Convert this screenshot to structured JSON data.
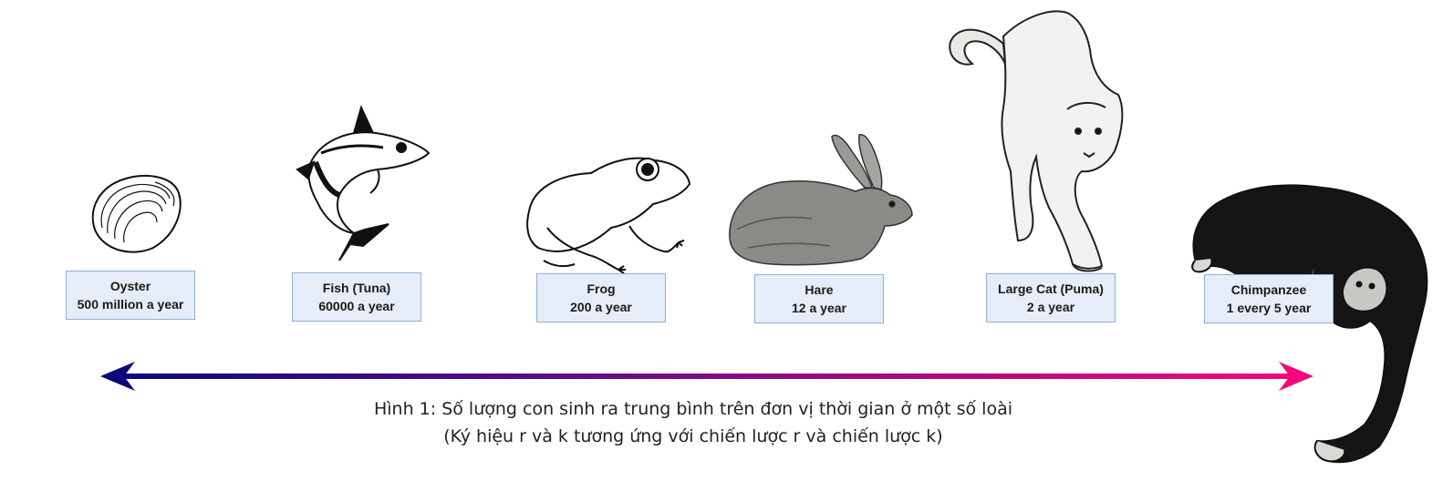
{
  "species": [
    {
      "name": "Oyster",
      "rate": "500 million a year",
      "icon": "oyster-icon"
    },
    {
      "name": "Fish (Tuna)",
      "rate": "60000 a year",
      "icon": "tuna-icon"
    },
    {
      "name": "Frog",
      "rate": "200 a year",
      "icon": "frog-icon"
    },
    {
      "name": "Hare",
      "rate": "12 a year",
      "icon": "hare-icon"
    },
    {
      "name": "Large Cat (Puma)",
      "rate": "2 a year",
      "icon": "puma-icon"
    },
    {
      "name": "Chimpanzee",
      "rate": "1 every 5 year",
      "icon": "chimpanzee-icon"
    }
  ],
  "arrow": {
    "left_color": "#0a0a7a",
    "right_color": "#f2087a"
  },
  "caption": {
    "line1": "Hình 1: Số lượng con sinh ra trung bình trên đơn vị thời gian ở một số loài",
    "line2": "(Ký hiệu r và k tương ứng với chiến lược r và chiến lược k)"
  }
}
